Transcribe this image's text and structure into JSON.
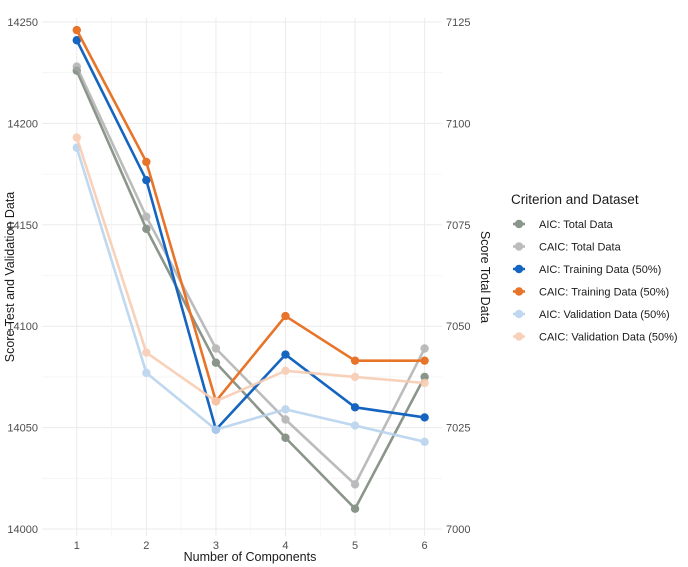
{
  "chart_data": {
    "type": "line",
    "x": [
      1,
      2,
      3,
      4,
      5,
      6
    ],
    "xlabel": "Number of Components",
    "ylabel_left": "Score Test and Validation Data",
    "ylabel_right": "Score Total Data",
    "y_left_lim": [
      14000,
      14250
    ],
    "y_left_ticks": [
      14000,
      14050,
      14100,
      14150,
      14200,
      14250
    ],
    "y_right_lim": [
      7000,
      7125
    ],
    "y_right_ticks": [
      7000,
      7025,
      7050,
      7075,
      7100,
      7125
    ],
    "grid": true,
    "legend": {
      "title": "Criterion and Dataset",
      "position": "right"
    },
    "series": [
      {
        "name": "AIC: Total Data",
        "axis": "right",
        "color": "#6f7c6f",
        "opacity": 0.8,
        "values": [
          7113,
          7074,
          7041,
          7022.5,
          7005,
          7037.5
        ]
      },
      {
        "name": "CAIC: Total Data",
        "axis": "right",
        "color": "#a6a6a6",
        "opacity": 0.75,
        "values": [
          7114,
          7077,
          7044.5,
          7027,
          7011,
          7044.5
        ]
      },
      {
        "name": "AIC: Training Data (50%)",
        "axis": "left",
        "color": "#1565c0",
        "opacity": 1,
        "values": [
          14241,
          14172,
          14049,
          14086,
          14060,
          14055
        ]
      },
      {
        "name": "CAIC: Training Data (50%)",
        "axis": "left",
        "color": "#e87429",
        "opacity": 1,
        "values": [
          14246,
          14181,
          14063,
          14105,
          14083,
          14083
        ]
      },
      {
        "name": "AIC: Validation Data (50%)",
        "axis": "left",
        "color": "#b9d4ee",
        "opacity": 0.9,
        "values": [
          14188,
          14077,
          14049,
          14059,
          14051,
          14043
        ]
      },
      {
        "name": "CAIC: Validation Data (50%)",
        "axis": "left",
        "color": "#f8cdb3",
        "opacity": 0.9,
        "values": [
          14193,
          14087,
          14063,
          14078,
          14075,
          14072
        ]
      }
    ]
  }
}
